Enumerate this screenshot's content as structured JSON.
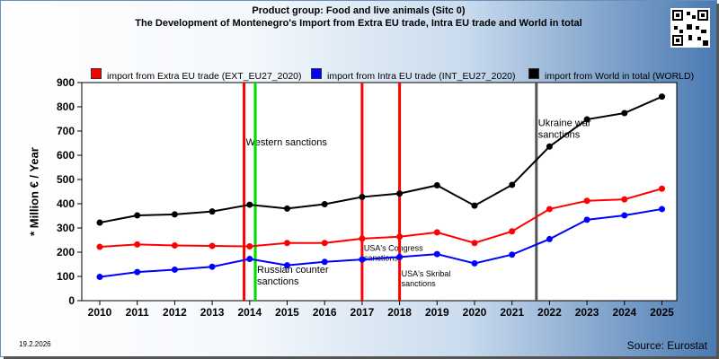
{
  "header": {
    "title_line1": "Product group: Food and live animals (Sitc 0)",
    "title_line2": "The Development of Montenegro's Import from Extra EU trade, Intra EU trade and World in total"
  },
  "footer": {
    "date": "19.2.2026",
    "source": "Source: Eurostat"
  },
  "chart_data": {
    "type": "line",
    "x": [
      "2010",
      "2011",
      "2012",
      "2013",
      "2014",
      "2015",
      "2016",
      "2017",
      "2018",
      "2019",
      "2020",
      "2021",
      "2022",
      "2023",
      "2024",
      "2025"
    ],
    "ylabel": "* Million € / Year",
    "ylim": [
      0,
      900
    ],
    "yticks": [
      0,
      100,
      200,
      300,
      400,
      500,
      600,
      700,
      800,
      900
    ],
    "grid": false,
    "legend_placement": "top",
    "series": [
      {
        "name": "import from Extra EU trade (EXT_EU27_2020)",
        "color": "#ff0000",
        "values": [
          222,
          232,
          228,
          226,
          224,
          238,
          238,
          256,
          264,
          282,
          238,
          286,
          378,
          412,
          418,
          462
        ]
      },
      {
        "name": "import from Intra EU trade (INT_EU27_2020)",
        "color": "#0000ff",
        "values": [
          98,
          118,
          128,
          140,
          172,
          146,
          160,
          170,
          180,
          192,
          154,
          190,
          254,
          334,
          352,
          378
        ]
      },
      {
        "name": "import from World in total (WORLD)",
        "color": "#000000",
        "values": [
          322,
          352,
          356,
          368,
          396,
          380,
          398,
          428,
          442,
          476,
          392,
          478,
          636,
          748,
          774,
          842
        ]
      }
    ],
    "annotations": [
      {
        "label": "Western sanctions",
        "x_pos": 2013.85,
        "color": "#ff0000",
        "label_y": 640
      },
      {
        "label": "",
        "x_pos": 2014.15,
        "color": "#00dd00",
        "label_y": null
      },
      {
        "label": "Russian counter\nsanctions",
        "x_pos": 2014.15,
        "color": "#00dd00",
        "label_y": 115
      },
      {
        "label": "USA's Congress\nsanctions",
        "x_pos": 2017.0,
        "color": "#ff0000",
        "label_y": 205
      },
      {
        "label": "USA's Skribal\nsanctions",
        "x_pos": 2018.0,
        "color": "#ff0000",
        "label_y": 100
      },
      {
        "label": "Ukraine war\nsanctions",
        "x_pos": 2021.65,
        "color": "#555555",
        "label_y": 720
      }
    ]
  }
}
